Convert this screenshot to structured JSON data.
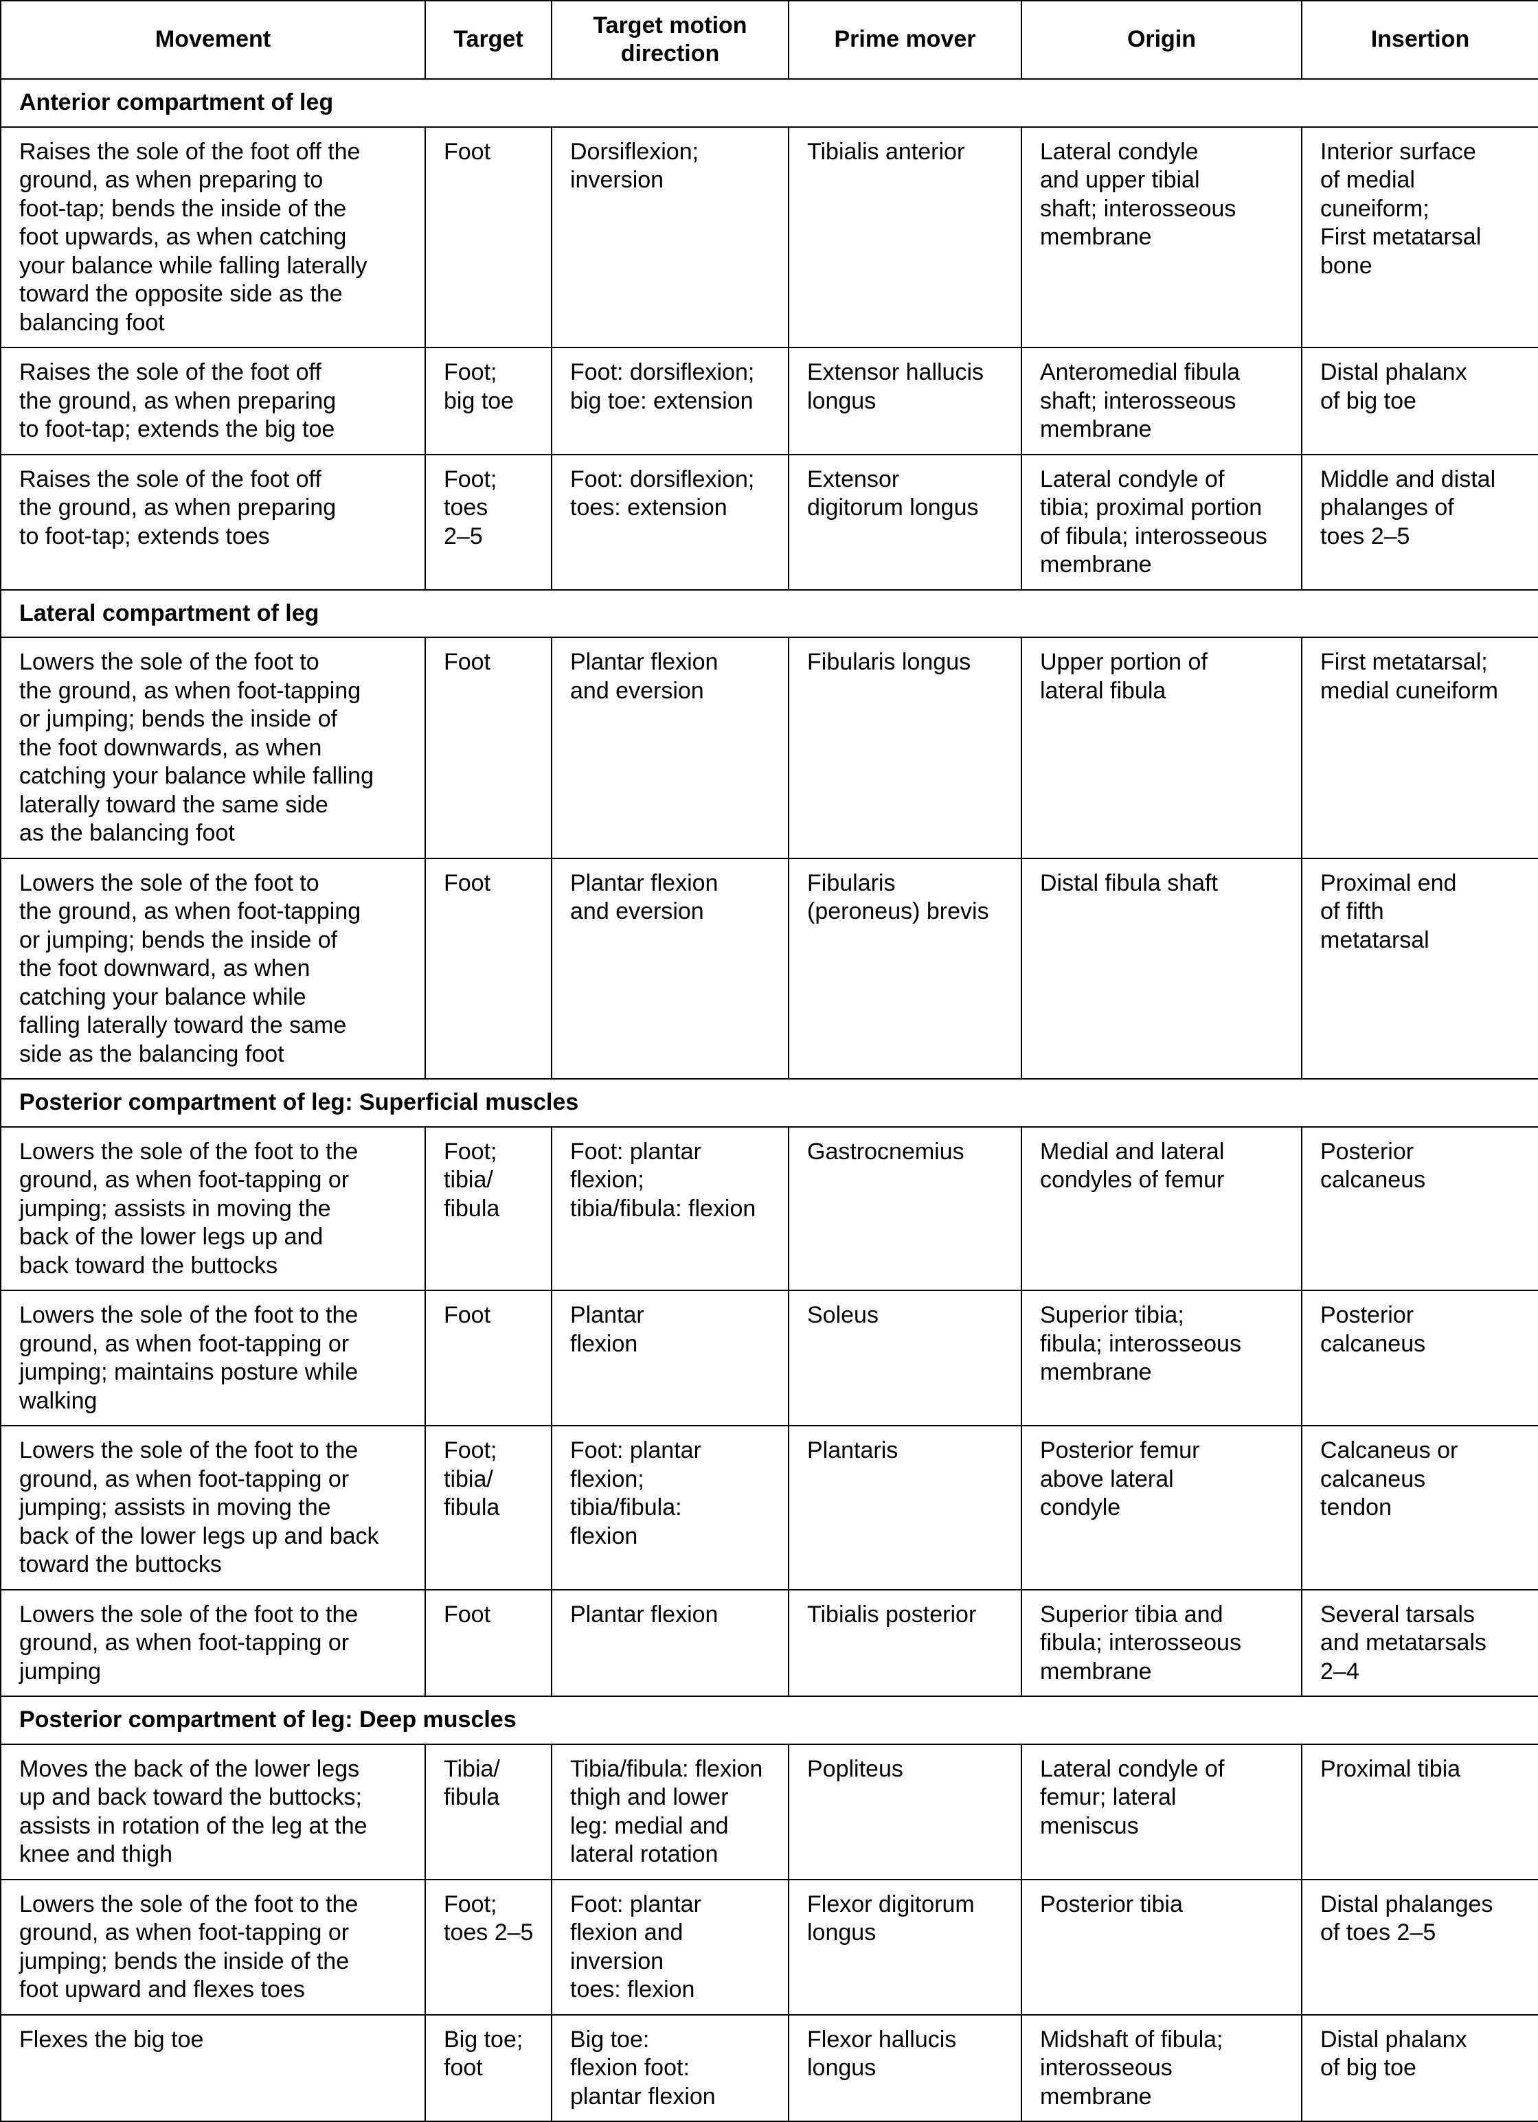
{
  "headers": [
    "Movement",
    "Target",
    "Target motion\ndirection",
    "Prime mover",
    "Origin",
    "Insertion"
  ],
  "groups": [
    {
      "title": "Anterior compartment of leg",
      "rows": [
        [
          "Raises the sole of the foot off the\nground, as when preparing to\nfoot-tap; bends the inside of the\nfoot upwards, as when catching\nyour balance while falling laterally\ntoward the opposite side as the\nbalancing foot",
          "Foot",
          "Dorsiflexion;\ninversion",
          "Tibialis anterior",
          "Lateral condyle\nand upper tibial\nshaft; interosseous\nmembrane",
          "Interior surface\nof medial\ncuneiform;\nFirst metatarsal\nbone"
        ],
        [
          "Raises the sole of the foot off\nthe ground, as when preparing\nto foot-tap; extends the big toe",
          "Foot;\nbig toe",
          "Foot: dorsiflexion;\nbig toe: extension",
          "Extensor hallucis\nlongus",
          "Anteromedial fibula\nshaft; interosseous\nmembrane",
          "Distal phalanx\nof big toe"
        ],
        [
          "Raises the sole of the foot off\nthe ground, as when preparing\nto foot-tap; extends toes",
          "Foot;\ntoes\n2–5",
          "Foot: dorsiflexion;\ntoes: extension",
          "Extensor\ndigitorum longus",
          "Lateral condyle of\ntibia; proximal portion\nof fibula; interosseous\nmembrane",
          "Middle and distal\nphalanges of\ntoes 2–5"
        ]
      ]
    },
    {
      "title": "Lateral compartment of leg",
      "rows": [
        [
          "Lowers the sole of the foot to\nthe ground, as when foot-tapping\nor jumping; bends the inside of\nthe foot downwards, as when\ncatching your balance while falling\nlaterally toward the same side\nas the balancing foot",
          "Foot",
          "Plantar flexion\nand eversion",
          "Fibularis longus",
          "Upper portion of\nlateral fibula",
          "First metatarsal;\nmedial cuneiform"
        ],
        [
          "Lowers the sole of the foot to\nthe ground, as when foot-tapping\nor jumping; bends the inside of\nthe foot downward, as when\ncatching your balance while\nfalling laterally toward the same\nside as the balancing foot",
          "Foot",
          "Plantar flexion\nand eversion",
          "Fibularis\n(peroneus) brevis",
          "Distal fibula shaft",
          "Proximal end\nof fifth\nmetatarsal"
        ]
      ]
    },
    {
      "title": "Posterior compartment of leg: Superficial muscles",
      "rows": [
        [
          "Lowers the sole of the foot to the\nground, as when foot-tapping or\njumping; assists in moving the\nback of the lower legs up and\nback toward the buttocks",
          "Foot;\ntibia/\nfibula",
          "Foot: plantar\nflexion;\ntibia/fibula: flexion",
          "Gastrocnemius",
          "Medial and lateral\ncondyles of femur",
          "Posterior\ncalcaneus"
        ],
        [
          "Lowers the sole of the foot to the\nground, as when foot-tapping or\njumping; maintains posture while\nwalking",
          "Foot",
          "Plantar\nflexion",
          "Soleus",
          "Superior tibia;\nfibula; interosseous\nmembrane",
          "Posterior\ncalcaneus"
        ],
        [
          "Lowers the sole of the foot to the\nground, as when foot-tapping or\njumping; assists in moving the\nback of the lower legs up and back\ntoward the buttocks",
          "Foot;\ntibia/\nfibula",
          "Foot: plantar\nflexion;\ntibia/fibula:\nflexion",
          "Plantaris",
          "Posterior femur\nabove lateral\ncondyle",
          "Calcaneus or\ncalcaneus\ntendon"
        ],
        [
          "Lowers the sole of the foot to the\nground, as when foot-tapping or\njumping",
          "Foot",
          "Plantar flexion",
          "Tibialis posterior",
          "Superior tibia and\nfibula; interosseous\nmembrane",
          "Several tarsals\nand metatarsals\n2–4"
        ]
      ]
    },
    {
      "title": "Posterior compartment of leg: Deep muscles",
      "rows": [
        [
          "Moves the back of the lower legs\nup and back toward the buttocks;\nassists in rotation of the leg at the\nknee and thigh",
          "Tibia/\nfibula",
          "Tibia/fibula: flexion\nthigh and lower\nleg: medial and\nlateral rotation",
          "Popliteus",
          "Lateral condyle of\nfemur; lateral\nmeniscus",
          "Proximal tibia"
        ],
        [
          "Lowers the sole of the foot to the\nground, as when foot-tapping or\njumping; bends the inside of the\nfoot upward and flexes toes",
          "Foot;\ntoes 2–5",
          "Foot: plantar\nflexion and\ninversion\ntoes: flexion",
          "Flexor digitorum\nlongus",
          "Posterior tibia",
          "Distal phalanges\nof toes 2–5"
        ],
        [
          "Flexes the big toe",
          "Big toe;\nfoot",
          "Big toe:\nflexion foot:\nplantar flexion",
          "Flexor hallucis\nlongus",
          "Midshaft of fibula;\ninterosseous\nmembrane",
          "Distal phalanx\nof big toe"
        ]
      ]
    }
  ]
}
